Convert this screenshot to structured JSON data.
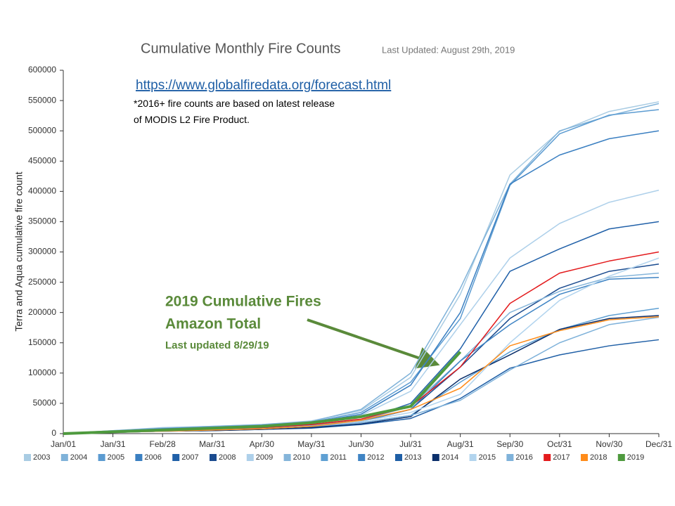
{
  "chart_data": {
    "type": "line",
    "title": "Cumulative Monthly Fire Counts",
    "subtitle": "Last Updated: August 29th, 2019",
    "y_label": "Terra and Aqua cumulative fire count",
    "link": "https://www.globalfiredata.org/forecast.html",
    "note": "*2016+ fire counts are based on latest release of MODIS L2 Fire Product.",
    "annotation": [
      "2019 Cumulative Fires",
      "Amazon Total",
      "Last updated 8/29/19"
    ],
    "categories": [
      "Jan/01",
      "Jan/31",
      "Feb/28",
      "Mar/31",
      "Apr/30",
      "May/31",
      "Jun/30",
      "Jul/31",
      "Aug/31",
      "Sep/30",
      "Oct/31",
      "Nov/30",
      "Dec/31"
    ],
    "ylim": [
      0,
      600000
    ],
    "yticks": [
      0,
      50000,
      100000,
      150000,
      200000,
      250000,
      300000,
      350000,
      400000,
      450000,
      500000,
      550000,
      600000
    ],
    "series": [
      {
        "name": "2003",
        "color": "#a9cce3",
        "values": [
          0,
          5000,
          10000,
          12000,
          15000,
          21000,
          38000,
          93000,
          230000,
          427000,
          499000,
          532000,
          548000
        ]
      },
      {
        "name": "2004",
        "color": "#7fb2d9",
        "values": [
          0,
          5000,
          9000,
          12000,
          15000,
          20000,
          40000,
          100000,
          240000,
          412000,
          500000,
          525000,
          545000
        ]
      },
      {
        "name": "2005",
        "color": "#5b9bd1",
        "values": [
          0,
          4000,
          8000,
          11000,
          14000,
          19000,
          35000,
          85000,
          190000,
          410000,
          495000,
          526000,
          535000
        ]
      },
      {
        "name": "2006",
        "color": "#3a7fc1",
        "values": [
          0,
          4000,
          8000,
          10000,
          13000,
          18000,
          32000,
          80000,
          200000,
          412000,
          460000,
          487000,
          500000
        ]
      },
      {
        "name": "2007",
        "color": "#2060a8",
        "values": [
          0,
          3000,
          6000,
          8000,
          10000,
          14000,
          22000,
          50000,
          140000,
          268000,
          305000,
          338000,
          350000
        ]
      },
      {
        "name": "2008",
        "color": "#1a4b8f",
        "values": [
          0,
          3000,
          5000,
          7000,
          9000,
          12000,
          20000,
          40000,
          110000,
          190000,
          240000,
          268000,
          280000
        ]
      },
      {
        "name": "2009",
        "color": "#aed0ea",
        "values": [
          0,
          3000,
          6000,
          8000,
          11000,
          16000,
          30000,
          70000,
          180000,
          290000,
          347000,
          382000,
          402000
        ]
      },
      {
        "name": "2010",
        "color": "#85b5da",
        "values": [
          0,
          3000,
          5000,
          7000,
          9000,
          13000,
          22000,
          45000,
          120000,
          200000,
          235000,
          258000,
          265000
        ]
      },
      {
        "name": "2011",
        "color": "#5fa0d3",
        "values": [
          0,
          2000,
          4000,
          6000,
          8000,
          11000,
          18000,
          30000,
          85000,
          135000,
          172000,
          195000,
          207000
        ]
      },
      {
        "name": "2012",
        "color": "#3f84c4",
        "values": [
          0,
          3000,
          5000,
          7000,
          9000,
          12000,
          20000,
          40000,
          120000,
          180000,
          230000,
          255000,
          258000
        ]
      },
      {
        "name": "2013",
        "color": "#1f5fa6",
        "values": [
          0,
          2000,
          4000,
          5000,
          7000,
          9000,
          15000,
          25000,
          58000,
          108000,
          130000,
          145000,
          155000
        ]
      },
      {
        "name": "2014",
        "color": "#0b2f6b",
        "values": [
          0,
          2000,
          4000,
          5000,
          7000,
          10000,
          16000,
          28000,
          90000,
          130000,
          172000,
          190000,
          195000
        ]
      },
      {
        "name": "2015",
        "color": "#b2d4ee",
        "values": [
          0,
          2000,
          4000,
          6000,
          8000,
          12000,
          20000,
          35000,
          65000,
          150000,
          220000,
          260000,
          290000
        ]
      },
      {
        "name": "2016",
        "color": "#7fb2da",
        "values": [
          0,
          2000,
          4000,
          6000,
          8000,
          12000,
          18000,
          30000,
          55000,
          105000,
          150000,
          180000,
          192000
        ]
      },
      {
        "name": "2017",
        "color": "#e31a1c",
        "values": [
          0,
          3000,
          6000,
          8000,
          10000,
          15000,
          24000,
          45000,
          110000,
          215000,
          265000,
          285000,
          300000
        ]
      },
      {
        "name": "2018",
        "color": "#ff8c1a",
        "values": [
          0,
          2000,
          4000,
          6000,
          8000,
          12000,
          22000,
          40000,
          75000,
          145000,
          170000,
          188000,
          193000
        ]
      },
      {
        "name": "2019",
        "color": "#4e9a3e",
        "values": [
          0,
          3000,
          6000,
          9000,
          12000,
          18000,
          28000,
          45000,
          135000,
          null,
          null,
          null,
          null
        ]
      }
    ]
  }
}
